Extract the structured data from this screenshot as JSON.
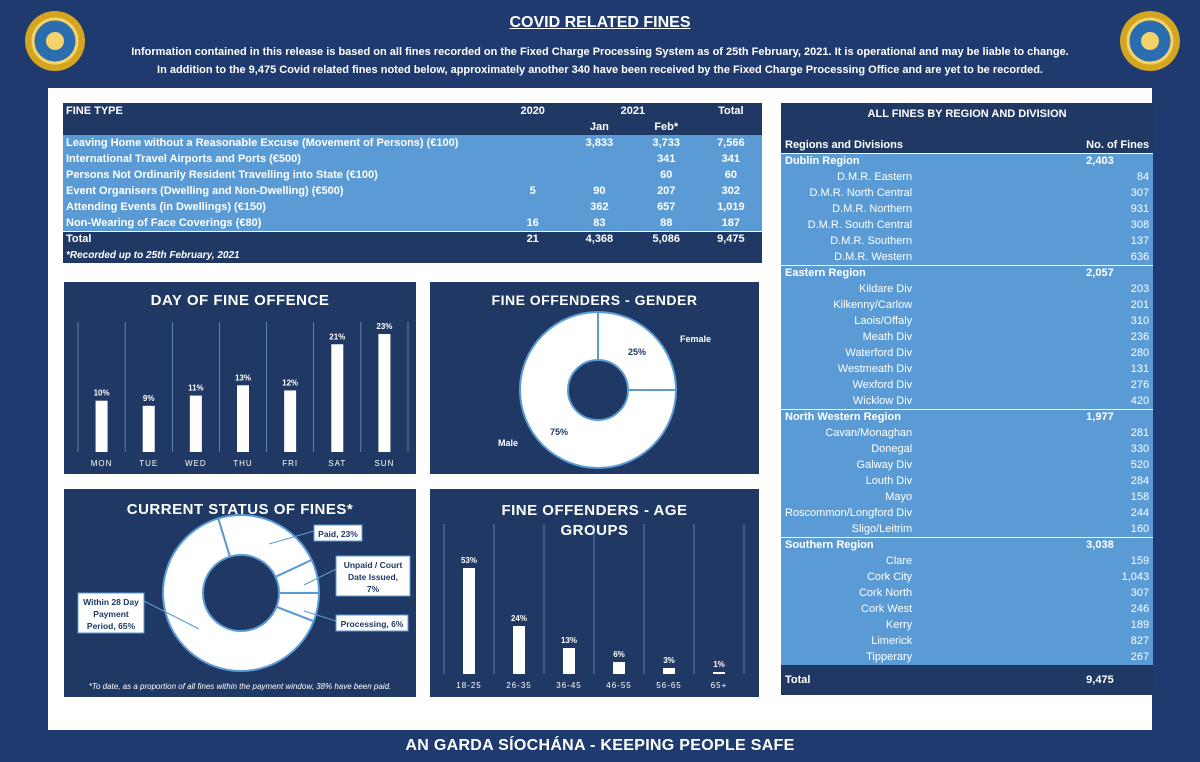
{
  "header": {
    "title": "COVID RELATED FINES",
    "info_line1": "Information contained in this release is based on all fines recorded on the Fixed Charge Processing System as of 25th February, 2021.  It is operational and may be liable to change.",
    "info_line2": "In addition to the 9,475 Covid related fines noted below, approximately another 340 have been received by the Fixed Charge Processing Office and are yet to be recorded."
  },
  "footer": "AN GARDA SÍOCHÁNA - KEEPING PEOPLE SAFE",
  "colors": {
    "navy": "#1f3864",
    "light_blue": "#5b9bd5",
    "bg": "#1f3a6e"
  },
  "fines_table": {
    "headers": [
      "FINE TYPE",
      "2020",
      "2021",
      "Total"
    ],
    "subheaders": [
      "Jan",
      "Feb*"
    ],
    "rows": [
      {
        "type": "Leaving Home without a Reasonable Excuse (Movement of Persons) (€100)",
        "y2020": "",
        "jan": "3,833",
        "feb": "3,733",
        "total": "7,566"
      },
      {
        "type": "International Travel Airports and Ports (€500)",
        "y2020": "",
        "jan": "",
        "feb": "341",
        "total": "341"
      },
      {
        "type": "Persons Not Ordinarily Resident Travelling into State (€100)",
        "y2020": "",
        "jan": "",
        "feb": "60",
        "total": "60"
      },
      {
        "type": "Event Organisers (Dwelling and Non-Dwelling) (€500)",
        "y2020": "5",
        "jan": "90",
        "feb": "207",
        "total": "302"
      },
      {
        "type": "Attending Events (in Dwellings) (€150)",
        "y2020": "",
        "jan": "362",
        "feb": "657",
        "total": "1,019"
      },
      {
        "type": "Non-Wearing of Face Coverings (€80)",
        "y2020": "16",
        "jan": "83",
        "feb": "88",
        "total": "187"
      }
    ],
    "total": {
      "type": "Total",
      "y2020": "21",
      "jan": "4,368",
      "feb": "5,086",
      "total": "9,475"
    },
    "note": "*Recorded up to 25th February, 2021"
  },
  "regions_table": {
    "title": "ALL FINES BY REGION AND DIVISION",
    "col1": "Regions and Divisions",
    "col2": "No. of Fines",
    "regions": [
      {
        "name": "Dublin Region",
        "total": "2,403",
        "divisions": [
          [
            "D.M.R. Eastern",
            "84"
          ],
          [
            "D.M.R. North Central",
            "307"
          ],
          [
            "D.M.R. Northern",
            "931"
          ],
          [
            "D.M.R. South Central",
            "308"
          ],
          [
            "D.M.R. Southern",
            "137"
          ],
          [
            "D.M.R. Western",
            "636"
          ]
        ]
      },
      {
        "name": "Eastern Region",
        "total": "2,057",
        "divisions": [
          [
            "Kildare Div",
            "203"
          ],
          [
            "Kilkenny/Carlow",
            "201"
          ],
          [
            "Laois/Offaly",
            "310"
          ],
          [
            "Meath Div",
            "236"
          ],
          [
            "Waterford Div",
            "280"
          ],
          [
            "Westmeath Div",
            "131"
          ],
          [
            "Wexford Div",
            "276"
          ],
          [
            "Wicklow Div",
            "420"
          ]
        ]
      },
      {
        "name": "North Western Region",
        "total": "1,977",
        "divisions": [
          [
            "Cavan/Monaghan",
            "281"
          ],
          [
            "Donegal",
            "330"
          ],
          [
            "Galway Div",
            "520"
          ],
          [
            "Louth Div",
            "284"
          ],
          [
            "Mayo",
            "158"
          ],
          [
            "Roscommon/Longford Div",
            "244"
          ],
          [
            "Sligo/Leitrim",
            "160"
          ]
        ]
      },
      {
        "name": "Southern Region",
        "total": "3,038",
        "divisions": [
          [
            "Clare",
            "159"
          ],
          [
            "Cork City",
            "1,043"
          ],
          [
            "Cork North",
            "307"
          ],
          [
            "Cork West",
            "246"
          ],
          [
            "Kerry",
            "189"
          ],
          [
            "Limerick",
            "827"
          ],
          [
            "Tipperary",
            "267"
          ]
        ]
      }
    ],
    "total_label": "Total",
    "total": "9,475"
  },
  "chart_data": [
    {
      "type": "bar",
      "title": "DAY OF FINE OFFENCE",
      "categories": [
        "MON",
        "TUE",
        "WED",
        "THU",
        "FRI",
        "SAT",
        "SUN"
      ],
      "values": [
        10,
        9,
        11,
        13,
        12,
        21,
        23
      ],
      "labels": [
        "10%",
        "9%",
        "11%",
        "13%",
        "12%",
        "21%",
        "23%"
      ],
      "unit": "%"
    },
    {
      "type": "pie",
      "title": "FINE OFFENDERS - GENDER",
      "categories": [
        "Female",
        "Male"
      ],
      "values": [
        25,
        75
      ],
      "labels": [
        "25%",
        "75%"
      ]
    },
    {
      "type": "pie",
      "title": "CURRENT STATUS OF FINES*",
      "categories": [
        "Paid",
        "Unpaid / Court Date Issued",
        "Processing",
        "Within 28 Day Payment Period"
      ],
      "values": [
        23,
        7,
        6,
        65
      ],
      "labels": [
        "Paid, 23%",
        "Unpaid / Court Date Issued, 7%",
        "Processing, 6%",
        "Within 28 Day Payment Period, 65%"
      ],
      "note": "*To date, as a proportion of all fines within the payment window, 38% have been paid."
    },
    {
      "type": "bar",
      "title": "FINE OFFENDERS - AGE GROUPS",
      "categories": [
        "18-25",
        "26-35",
        "36-45",
        "46-55",
        "56-65",
        "65+"
      ],
      "values": [
        53,
        24,
        13,
        6,
        3,
        1
      ],
      "labels": [
        "53%",
        "24%",
        "13%",
        "6%",
        "3%",
        "1%"
      ],
      "unit": "%"
    }
  ]
}
